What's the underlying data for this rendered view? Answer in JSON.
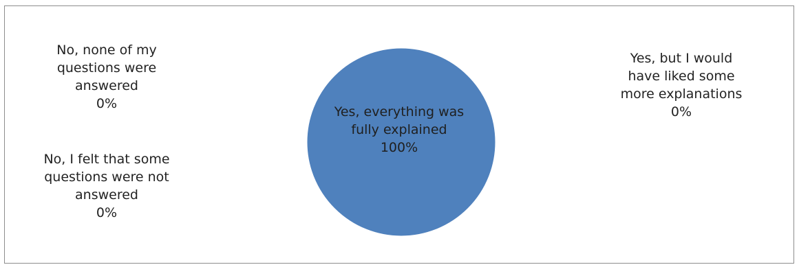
{
  "chart_data": {
    "type": "pie",
    "slices": [
      {
        "name": "Yes, everything was fully explained",
        "value": 100,
        "label_lines": [
          "Yes, everything was",
          "fully explained",
          "100%"
        ]
      },
      {
        "name": "Yes, but I would have liked some more explanations",
        "value": 0,
        "label_lines": [
          "Yes, but I would",
          "have liked some",
          "more explanations",
          "0%"
        ]
      },
      {
        "name": "No, I felt that some questions were not answered",
        "value": 0,
        "label_lines": [
          "No, I felt that some",
          "questions were not",
          "answered",
          "0%"
        ]
      },
      {
        "name": "No, none of my questions were answered",
        "value": 0,
        "label_lines": [
          "No, none of my",
          "questions were",
          "answered",
          "0%"
        ]
      }
    ],
    "colors": {
      "slice_fill": "#4f81bd",
      "slice_edge": "#ffffff",
      "border": "#8c8c8c"
    },
    "title": "",
    "legend": "none"
  }
}
